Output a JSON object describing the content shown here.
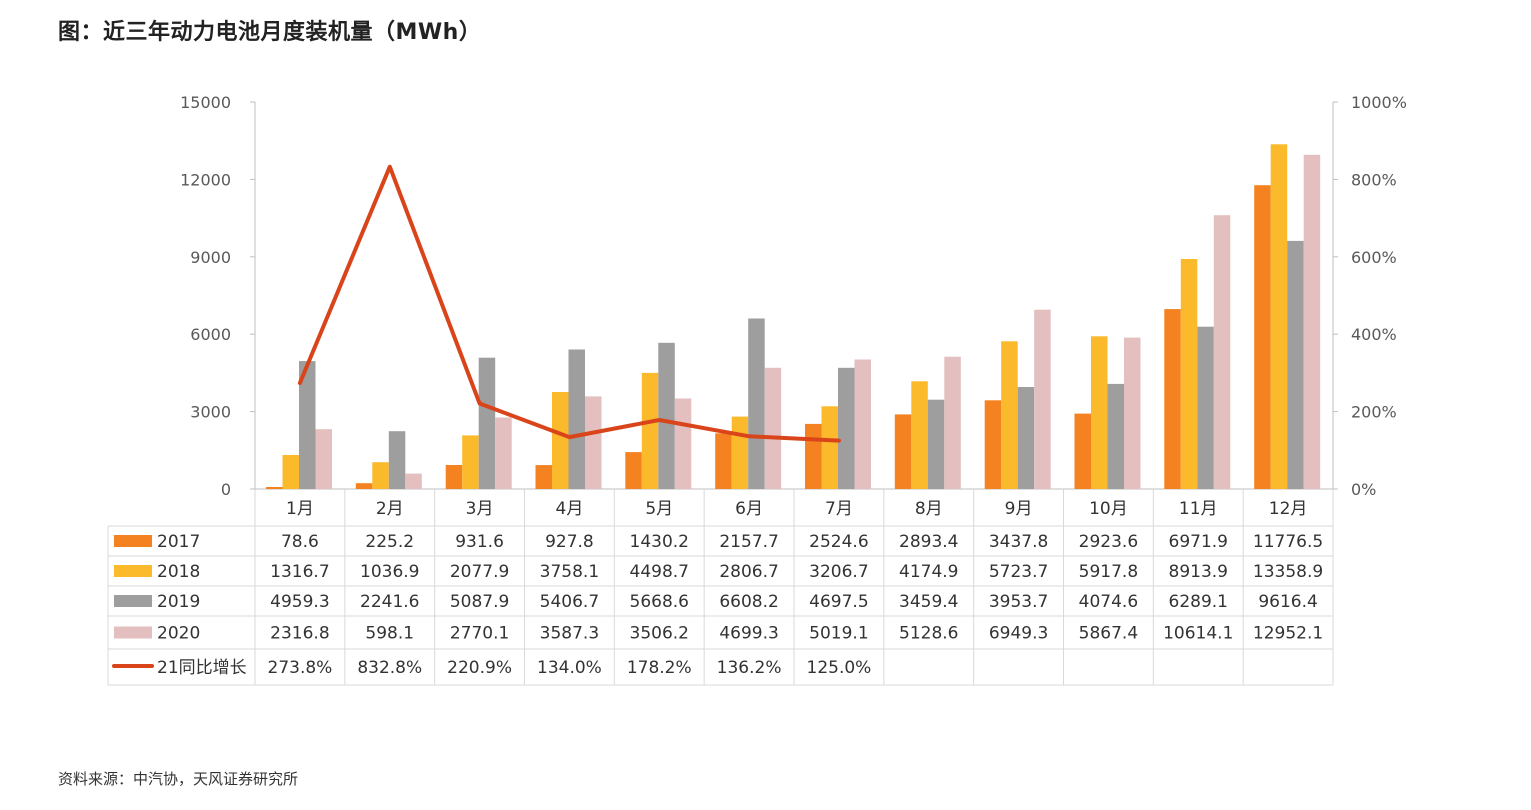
{
  "title": "图：近三年动力电池月度装机量（MWh）",
  "source": "资料来源：中汽协，天风证券研究所",
  "colors": {
    "s2017": "#F58220",
    "s2018": "#FBBA2B",
    "s2019": "#9E9E9E",
    "s2020": "#E3BFC0",
    "growth": "#D9441A",
    "axis": "#BFBFBF",
    "text": "#595959"
  },
  "chart_data": {
    "type": "bar",
    "categories": [
      "1月",
      "2月",
      "3月",
      "4月",
      "5月",
      "6月",
      "7月",
      "8月",
      "9月",
      "10月",
      "11月",
      "12月"
    ],
    "ylim": [
      0,
      15000
    ],
    "y_ticks": [
      "0",
      "3000",
      "6000",
      "9000",
      "12000",
      "15000"
    ],
    "y2lim": [
      0,
      10
    ],
    "y2_ticks": [
      "0%",
      "200%",
      "400%",
      "600%",
      "800%",
      "1000%"
    ],
    "series": [
      {
        "name": "2017",
        "type": "bar",
        "values": [
          78.6,
          225.2,
          931.6,
          927.8,
          1430.2,
          2157.7,
          2524.6,
          2893.4,
          3437.8,
          2923.6,
          6971.9,
          11776.5
        ],
        "labels": [
          "78.6",
          "225.2",
          "931.6",
          "927.8",
          "1430.2",
          "2157.7",
          "2524.6",
          "2893.4",
          "3437.8",
          "2923.6",
          "6971.9",
          "11776.5"
        ]
      },
      {
        "name": "2018",
        "type": "bar",
        "values": [
          1316.7,
          1036.9,
          2077.9,
          3758.1,
          4498.7,
          2806.7,
          3206.7,
          4174.9,
          5723.7,
          5917.8,
          8913.9,
          13358.9
        ],
        "labels": [
          "1316.7",
          "1036.9",
          "2077.9",
          "3758.1",
          "4498.7",
          "2806.7",
          "3206.7",
          "4174.9",
          "5723.7",
          "5917.8",
          "8913.9",
          "13358.9"
        ]
      },
      {
        "name": "2019",
        "type": "bar",
        "values": [
          4959.3,
          2241.6,
          5087.9,
          5406.7,
          5668.6,
          6608.2,
          4697.5,
          3459.4,
          3953.7,
          4074.6,
          6289.1,
          9616.4
        ],
        "labels": [
          "4959.3",
          "2241.6",
          "5087.9",
          "5406.7",
          "5668.6",
          "6608.2",
          "4697.5",
          "3459.4",
          "3953.7",
          "4074.6",
          "6289.1",
          "9616.4"
        ]
      },
      {
        "name": "2020",
        "type": "bar",
        "values": [
          2316.8,
          598.1,
          2770.1,
          3587.3,
          3506.2,
          4699.3,
          5019.1,
          5128.6,
          6949.3,
          5867.4,
          10614.1,
          12952.1
        ],
        "labels": [
          "2316.8",
          "598.1",
          "2770.1",
          "3587.3",
          "3506.2",
          "4699.3",
          "5019.1",
          "5128.6",
          "6949.3",
          "5867.4",
          "10614.1",
          "12952.1"
        ]
      },
      {
        "name": "21同比增长",
        "type": "line",
        "axis": "right",
        "values": [
          2.738,
          8.328,
          2.209,
          1.34,
          1.782,
          1.362,
          1.25,
          null,
          null,
          null,
          null,
          null
        ],
        "labels": [
          "273.8%",
          "832.8%",
          "220.9%",
          "134.0%",
          "178.2%",
          "136.2%",
          "125.0%",
          "",
          "",
          "",
          "",
          ""
        ]
      }
    ]
  }
}
